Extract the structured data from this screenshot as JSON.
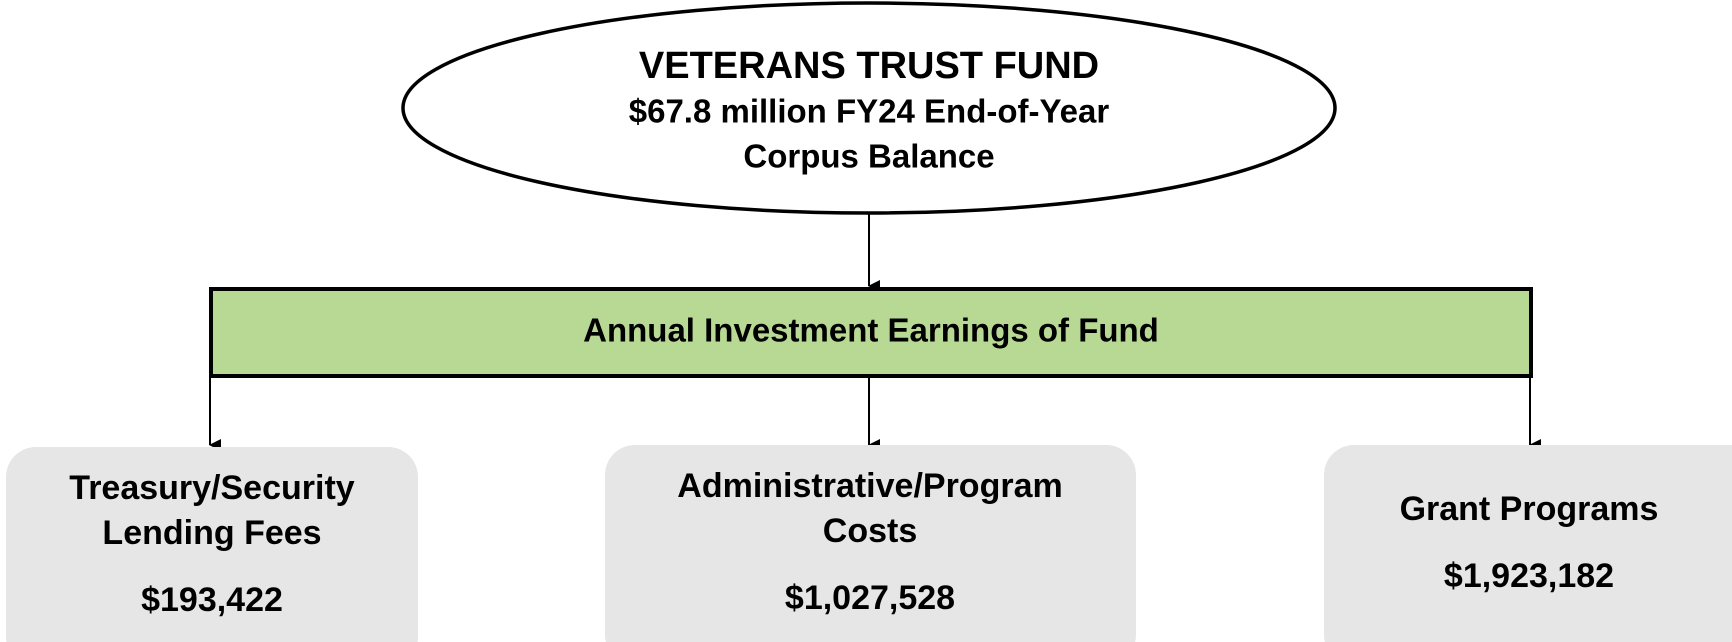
{
  "fund": {
    "lines": [
      "VETERANS TRUST FUND",
      "$67.8 million FY24 End-of-Year",
      "Corpus Balance"
    ]
  },
  "earnings": {
    "label": "Annual Investment Earnings of Fund"
  },
  "branches": [
    {
      "lines": [
        "Treasury/Security",
        "Lending Fees"
      ],
      "amount": "$193,422"
    },
    {
      "lines": [
        "Administrative/Program",
        "Costs"
      ],
      "amount": "$1,027,528"
    },
    {
      "lines": [
        "Grant Programs"
      ],
      "amount": "$1,923,182"
    }
  ]
}
